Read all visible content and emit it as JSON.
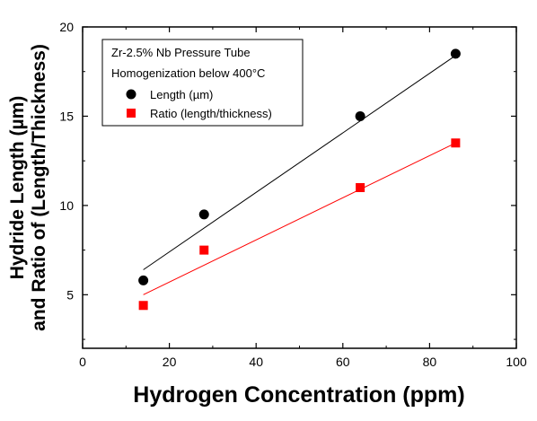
{
  "chart_data": {
    "type": "scatter",
    "xlabel": "Hydrogen Concentration (ppm)",
    "ylabel_line1": "Hydride Length (µm)",
    "ylabel_line2": "and Ratio of (Length/Thickness)",
    "xlim": [
      0,
      100
    ],
    "ylim": [
      2,
      20
    ],
    "xticks": [
      0,
      20,
      40,
      60,
      80,
      100
    ],
    "yticks": [
      5,
      10,
      15,
      20
    ],
    "grid": false,
    "legend_position": "top-left",
    "legend": {
      "line1": "Zr-2.5% Nb Pressure Tube",
      "line2": "Homogenization below 400°C"
    },
    "series": [
      {
        "name": "Length (µm)",
        "marker": "circle",
        "color": "#000000",
        "x": [
          14,
          28,
          64,
          86
        ],
        "y": [
          5.8,
          9.5,
          15.0,
          18.5
        ],
        "fit": {
          "x": [
            14,
            86
          ],
          "y": [
            6.4,
            18.4
          ]
        }
      },
      {
        "name": "Ratio (length/thickness)",
        "marker": "square",
        "color": "#ff0000",
        "x": [
          14,
          28,
          64,
          86
        ],
        "y": [
          4.4,
          7.5,
          11.0,
          13.5
        ],
        "fit": {
          "x": [
            14,
            86
          ],
          "y": [
            5.0,
            13.5
          ]
        }
      }
    ]
  }
}
